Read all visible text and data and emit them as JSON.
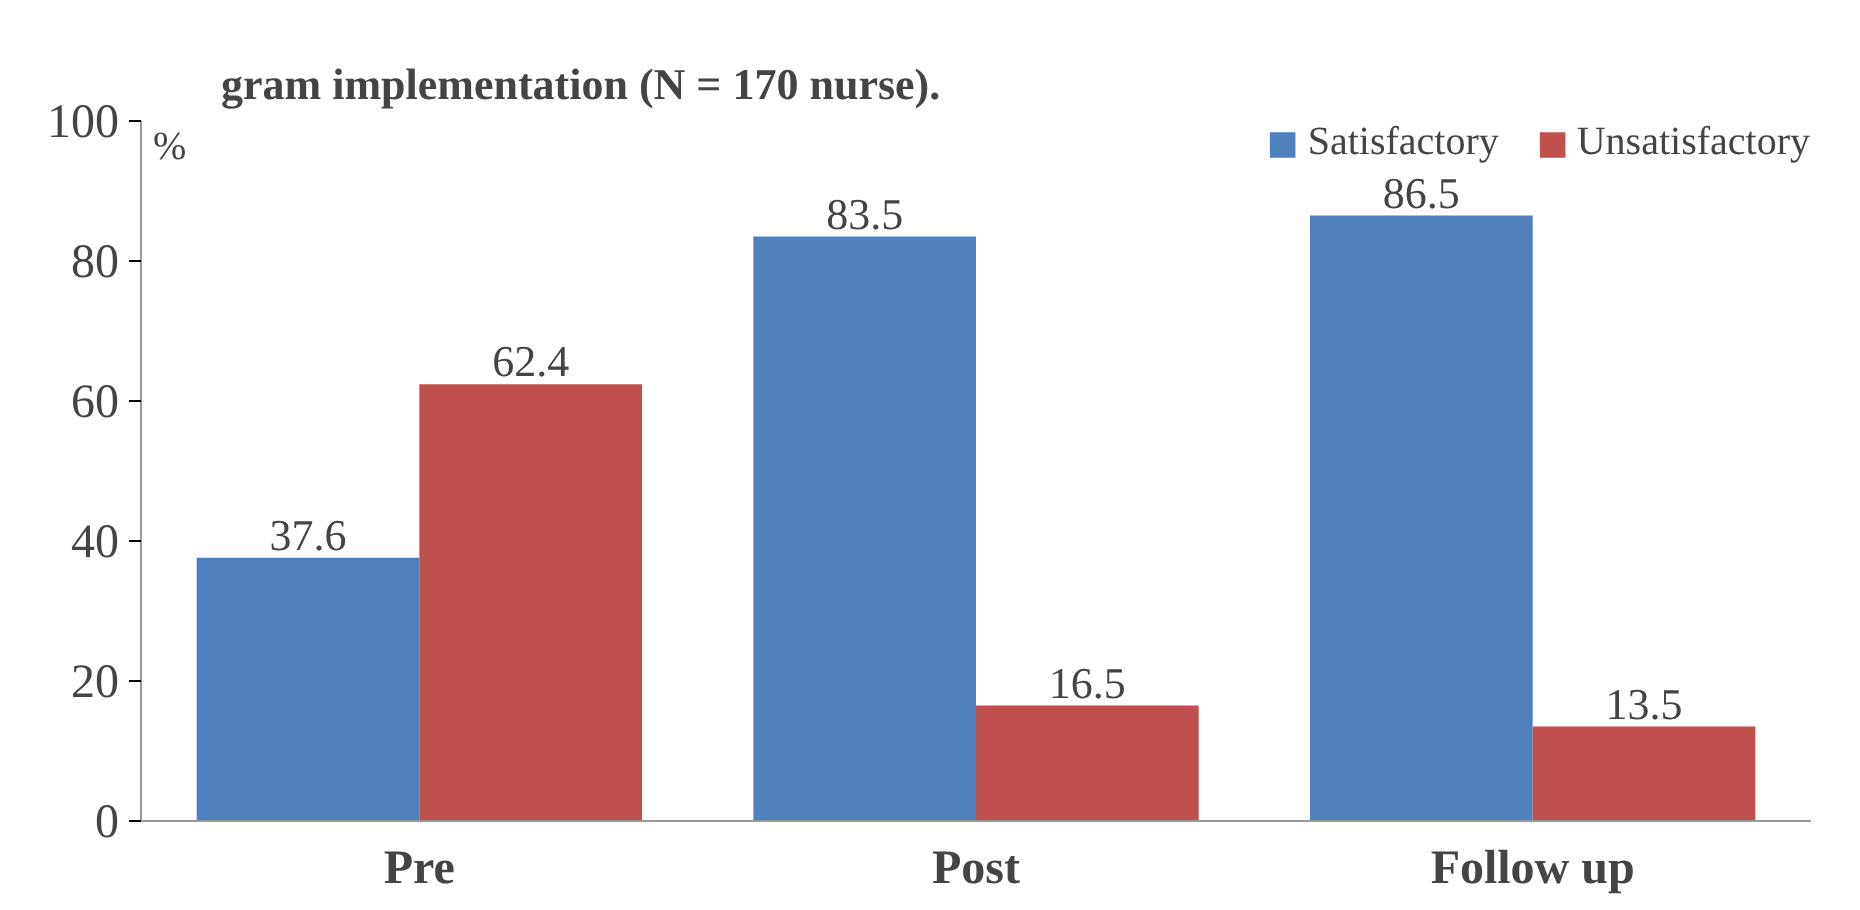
{
  "chart_data": {
    "type": "bar",
    "title": "gram implementation (N = 170 nurse).",
    "ylabel": "%",
    "categories": [
      "Pre",
      "Post",
      "Follow up"
    ],
    "series": [
      {
        "name": "Satisfactory",
        "color": "#4f81bd",
        "values": [
          37.6,
          83.5,
          86.5
        ]
      },
      {
        "name": "Unsatisfactory",
        "color": "#c0504d",
        "values": [
          62.4,
          16.5,
          13.5
        ]
      }
    ],
    "ylim": [
      0,
      100
    ],
    "yticks": [
      0,
      20,
      40,
      60,
      80,
      100
    ],
    "grid": false,
    "legend": "top right",
    "data_labels": true
  }
}
